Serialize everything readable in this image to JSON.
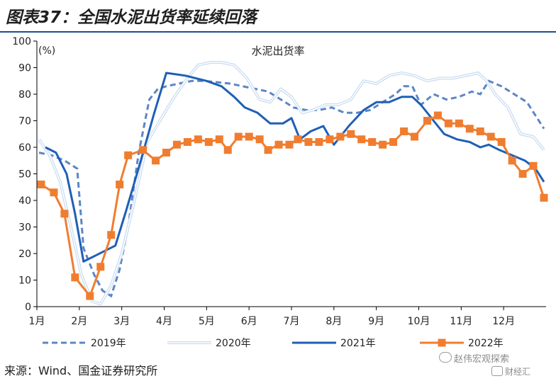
{
  "title": "图表37：全国水泥出货率延续回落",
  "source": "来源：Wind、国金证券研究所",
  "watermark": "赵伟宏观探索",
  "watermark2": "财经汇",
  "chart_data": {
    "type": "line",
    "title": "水泥出货率",
    "ylabel": "(%)",
    "ylim": [
      0,
      100
    ],
    "yticks": [
      0,
      10,
      20,
      30,
      40,
      50,
      60,
      70,
      80,
      90,
      100
    ],
    "xlim": [
      1,
      13
    ],
    "xticks": [
      {
        "x": 1,
        "label": "1月"
      },
      {
        "x": 2,
        "label": "2月"
      },
      {
        "x": 3,
        "label": "3月"
      },
      {
        "x": 4,
        "label": "4月"
      },
      {
        "x": 5,
        "label": "5月"
      },
      {
        "x": 6,
        "label": "6月"
      },
      {
        "x": 7,
        "label": "7月"
      },
      {
        "x": 8,
        "label": "8月"
      },
      {
        "x": 9,
        "label": "9月"
      },
      {
        "x": 10,
        "label": "10月"
      },
      {
        "x": 11,
        "label": "11月"
      },
      {
        "x": 12,
        "label": "12月"
      }
    ],
    "grid": false,
    "legend_position": "bottom",
    "series": [
      {
        "name": "2019年",
        "color": "#5b86c5",
        "style": "dashed",
        "x": [
          1.05,
          1.35,
          1.65,
          1.95,
          2.1,
          2.35,
          2.55,
          2.75,
          2.95,
          3.15,
          3.4,
          3.65,
          3.85,
          4.05,
          4.35,
          4.65,
          4.95,
          5.25,
          5.55,
          5.85,
          6.15,
          6.45,
          6.75,
          7.05,
          7.35,
          7.65,
          7.95,
          8.25,
          8.55,
          8.85,
          9.15,
          9.45,
          9.65,
          9.85,
          10.05,
          10.35,
          10.65,
          10.95,
          11.25,
          11.45,
          11.65,
          11.95,
          12.25,
          12.55,
          12.95
        ],
        "y": [
          58,
          57,
          55,
          52,
          22,
          12,
          6,
          4,
          14,
          30,
          58,
          78,
          82,
          83,
          84,
          85,
          85,
          84.5,
          84,
          83,
          82,
          81,
          78,
          75,
          74,
          74,
          75,
          73,
          73,
          74,
          77,
          80,
          83,
          83,
          76,
          80,
          78,
          79,
          81,
          80,
          85,
          83,
          80,
          77,
          67
        ]
      },
      {
        "name": "2020年",
        "color": "#c9dcf0",
        "style": "double",
        "x": [
          1.05,
          1.3,
          1.55,
          1.8,
          2.05,
          2.3,
          2.5,
          2.75,
          3.0,
          3.3,
          3.6,
          3.9,
          4.2,
          4.5,
          4.8,
          5.1,
          5.35,
          5.65,
          5.95,
          6.25,
          6.5,
          6.75,
          7.0,
          7.25,
          7.5,
          7.8,
          8.1,
          8.4,
          8.7,
          9.0,
          9.3,
          9.6,
          9.9,
          10.2,
          10.5,
          10.8,
          11.1,
          11.4,
          11.6,
          11.8,
          12.1,
          12.4,
          12.7,
          12.95
        ],
        "y": [
          63,
          57,
          47,
          30,
          12,
          2,
          1,
          8,
          20,
          40,
          62,
          70,
          78,
          85,
          91,
          92,
          92,
          91,
          86,
          78,
          77,
          82,
          79,
          73,
          74,
          76,
          76,
          78,
          85,
          84,
          87,
          88,
          87,
          85,
          86,
          86,
          87,
          88,
          85,
          80,
          75,
          65,
          64,
          59
        ]
      },
      {
        "name": "2021年",
        "color": "#1f5fb5",
        "style": "solid",
        "x": [
          1.2,
          1.45,
          1.7,
          1.9,
          2.1,
          2.35,
          2.6,
          2.85,
          3.1,
          3.45,
          3.75,
          4.05,
          4.5,
          5.0,
          5.35,
          5.65,
          5.9,
          6.2,
          6.5,
          6.8,
          7.0,
          7.2,
          7.45,
          7.75,
          8.0,
          8.35,
          8.7,
          9.0,
          9.3,
          9.6,
          9.85,
          10.05,
          10.35,
          10.6,
          10.9,
          11.2,
          11.45,
          11.65,
          11.9,
          12.2,
          12.5,
          12.75,
          12.95
        ],
        "y": [
          60,
          58,
          50,
          35,
          17,
          19,
          21,
          23,
          36,
          55,
          72,
          88,
          87,
          85,
          83,
          79,
          75,
          73,
          69,
          69,
          71,
          63,
          66,
          68,
          61,
          68,
          74,
          77,
          77,
          79,
          79,
          76,
          70,
          65,
          63,
          62,
          60,
          61,
          59,
          57,
          55,
          52,
          47
        ]
      },
      {
        "name": "2022年",
        "color": "#f07d2f",
        "style": "marker",
        "x": [
          1.1,
          1.4,
          1.65,
          1.9,
          2.25,
          2.5,
          2.75,
          2.95,
          3.15,
          3.5,
          3.8,
          4.05,
          4.3,
          4.55,
          4.8,
          5.05,
          5.3,
          5.5,
          5.75,
          6.0,
          6.25,
          6.45,
          6.7,
          6.95,
          7.15,
          7.4,
          7.65,
          7.9,
          8.15,
          8.4,
          8.65,
          8.9,
          9.15,
          9.4,
          9.65,
          9.9,
          10.2,
          10.45,
          10.7,
          10.95,
          11.2,
          11.45,
          11.7,
          11.95,
          12.2,
          12.45,
          12.7,
          12.95
        ],
        "y": [
          46,
          43,
          35,
          11,
          4,
          15,
          27,
          46,
          57,
          59,
          55,
          58,
          61,
          62,
          63,
          62,
          63,
          59,
          64,
          64,
          63,
          59,
          61,
          61,
          63,
          62,
          62,
          63,
          64,
          65,
          63,
          62,
          61,
          62,
          66,
          64,
          70,
          72,
          69,
          69,
          67,
          66,
          64,
          62,
          55,
          50,
          53,
          41
        ]
      }
    ]
  }
}
